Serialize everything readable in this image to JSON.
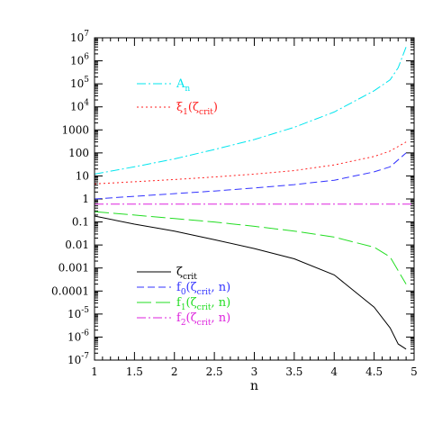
{
  "chart_data": {
    "type": "line",
    "xlabel": "n",
    "ylabel": "",
    "title": "",
    "xlim": [
      1,
      5
    ],
    "ylim": [
      1e-07,
      10000000.0
    ],
    "yscale": "log",
    "grid": false,
    "x_ticks": [
      "1",
      "1.5",
      "2",
      "2.5",
      "3",
      "3.5",
      "4",
      "4.5",
      "5"
    ],
    "y_ticks": [
      {
        "base": "10",
        "exp": "-7"
      },
      {
        "base": "10",
        "exp": "-6"
      },
      {
        "base": "10",
        "exp": "-5"
      },
      {
        "base": "0.0001",
        "exp": ""
      },
      {
        "base": "0.001",
        "exp": ""
      },
      {
        "base": "0.01",
        "exp": ""
      },
      {
        "base": "0.1",
        "exp": ""
      },
      {
        "base": "1",
        "exp": ""
      },
      {
        "base": "10",
        "exp": ""
      },
      {
        "base": "100",
        "exp": ""
      },
      {
        "base": "1000",
        "exp": ""
      },
      {
        "base": "10",
        "exp": "4"
      },
      {
        "base": "10",
        "exp": "5"
      },
      {
        "base": "10",
        "exp": "6"
      },
      {
        "base": "10",
        "exp": "7"
      }
    ],
    "series": [
      {
        "key": "A_n",
        "color": "#00e5ee",
        "dash": "10,3,2,3",
        "label_parts": [
          {
            "t": "A"
          },
          {
            "t": "n",
            "sub": true
          }
        ],
        "x": [
          1,
          1.5,
          2,
          2.5,
          3,
          3.5,
          4,
          4.5,
          4.7,
          4.8,
          4.9
        ],
        "y": [
          12,
          25,
          55,
          140,
          380,
          1300,
          6000,
          50000,
          150000,
          500000,
          4000000
        ]
      },
      {
        "key": "xi1",
        "color": "#ff2020",
        "dash": "2,3",
        "label_parts": [
          {
            "t": "ξ"
          },
          {
            "t": "1",
            "sub": true
          },
          {
            "t": "(ζ"
          },
          {
            "t": "crit",
            "sub": true
          },
          {
            "t": ")"
          }
        ],
        "x": [
          1,
          1.5,
          2,
          2.5,
          3,
          3.5,
          4,
          4.5,
          4.7,
          4.9
        ],
        "y": [
          4.5,
          5.6,
          7,
          9,
          12,
          17,
          30,
          70,
          120,
          300
        ]
      },
      {
        "key": "zeta_crit",
        "color": "#000000",
        "dash": "",
        "label_parts": [
          {
            "t": "ζ"
          },
          {
            "t": "crit",
            "sub": true
          }
        ],
        "x": [
          1,
          1.5,
          2,
          2.5,
          3,
          3.5,
          4,
          4.5,
          4.7,
          4.8,
          4.9
        ],
        "y": [
          0.18,
          0.08,
          0.04,
          0.017,
          0.007,
          0.0025,
          0.0005,
          2e-05,
          2.5e-06,
          5e-07,
          3e-07
        ]
      },
      {
        "key": "f0",
        "color": "#3333ff",
        "dash": "8,4",
        "label_parts": [
          {
            "t": "f"
          },
          {
            "t": "0",
            "sub": true
          },
          {
            "t": "(ζ"
          },
          {
            "t": "crit",
            "sub": true
          },
          {
            "t": ", n)"
          }
        ],
        "x": [
          1,
          1.5,
          2,
          2.5,
          3,
          3.5,
          4,
          4.5,
          4.7,
          4.9
        ],
        "y": [
          1,
          1.3,
          1.7,
          2.2,
          3.0,
          4.2,
          6.5,
          15,
          25,
          100
        ]
      },
      {
        "key": "f1",
        "color": "#22dd22",
        "dash": "16,5",
        "label_parts": [
          {
            "t": "f"
          },
          {
            "t": "1",
            "sub": true
          },
          {
            "t": "(ζ"
          },
          {
            "t": "crit",
            "sub": true
          },
          {
            "t": ", n)"
          }
        ],
        "x": [
          1,
          1.5,
          2,
          2.5,
          3,
          3.5,
          4,
          4.5,
          4.7,
          4.9
        ],
        "y": [
          0.28,
          0.2,
          0.14,
          0.1,
          0.065,
          0.04,
          0.022,
          0.008,
          0.003,
          0.0002
        ]
      },
      {
        "key": "f2",
        "color": "#dd22dd",
        "dash": "10,3,2,3",
        "label_parts": [
          {
            "t": "f"
          },
          {
            "t": "2",
            "sub": true
          },
          {
            "t": "(ζ"
          },
          {
            "t": "crit",
            "sub": true
          },
          {
            "t": ", n)"
          }
        ],
        "x": [
          1,
          2,
          3,
          4,
          5
        ],
        "y": [
          0.6,
          0.6,
          0.6,
          0.6,
          0.6
        ]
      }
    ],
    "legend_top": [
      "A_n",
      "xi1"
    ],
    "legend_bottom": [
      "zeta_crit",
      "f0",
      "f1",
      "f2"
    ]
  }
}
